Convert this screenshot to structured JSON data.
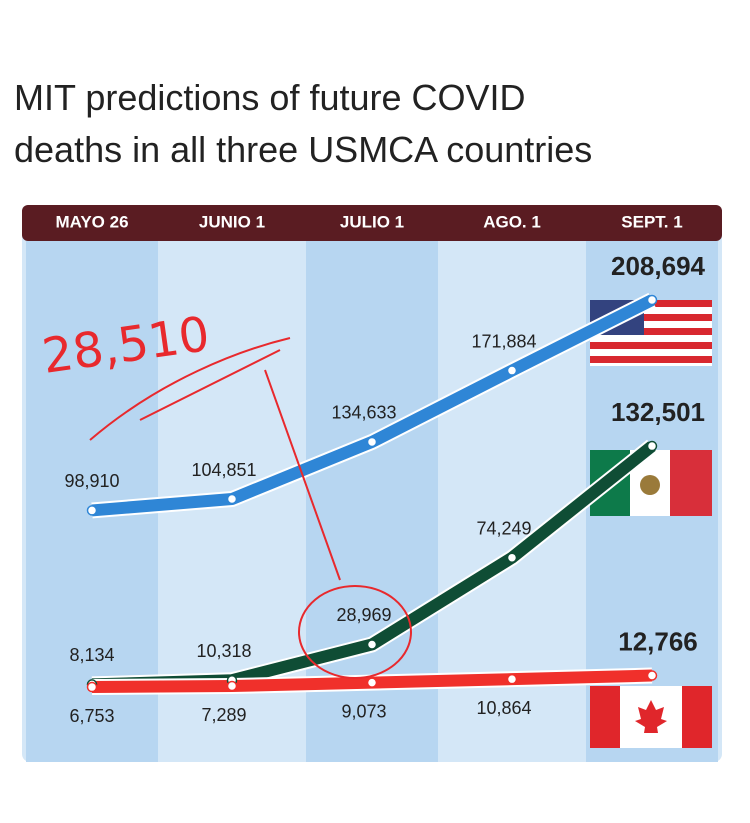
{
  "chart_data": {
    "type": "line",
    "title_lines": [
      "MIT predictions of future COVID",
      "deaths in all three USMCA countries"
    ],
    "categories": [
      "MAYO 26",
      "JUNIO 1",
      "JULIO 1",
      "AGO. 1",
      "SEPT. 1"
    ],
    "series": [
      {
        "color": "#2f86d6",
        "values": [
          98910,
          104851,
          134633,
          171884,
          208694
        ],
        "value_labels": [
          "98,910",
          "104,851",
          "134,633",
          "171,884",
          "208,694"
        ],
        "last_color": "#1f6fc4"
      },
      {
        "color": "#0f4d35",
        "values": [
          8134,
          10318,
          28969,
          74249,
          132501
        ],
        "value_labels": [
          "8,134",
          "10,318",
          "28,969",
          "74,249",
          "132,501"
        ],
        "last_color": "#0f4d35"
      },
      {
        "color": "#f0302b",
        "values": [
          6753,
          7289,
          9073,
          10864,
          12766
        ],
        "value_labels": [
          "6,753",
          "7,289",
          "9,073",
          "10,864",
          "12,766"
        ],
        "last_color": "#e0262b"
      }
    ],
    "annotation": "28,510"
  }
}
